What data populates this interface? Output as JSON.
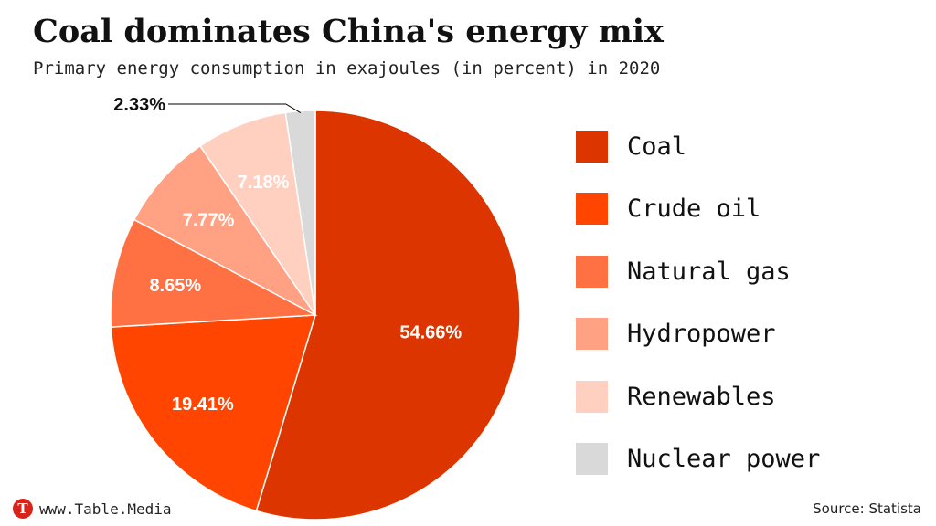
{
  "chart_data": {
    "type": "pie",
    "title": "Coal dominates China's energy mix",
    "subtitle": "Primary energy consumption in exajoules (in percent) in 2020",
    "categories": [
      "Coal",
      "Crude oil",
      "Natural gas",
      "Hydropower",
      "Renewables",
      "Nuclear power"
    ],
    "values": [
      54.66,
      19.41,
      8.65,
      7.77,
      7.18,
      2.33
    ],
    "data_labels": [
      "54.66%",
      "19.41%",
      "8.65%",
      "7.77%",
      "7.18%",
      "2.33%"
    ],
    "colors": [
      "#dd3500",
      "#ff4500",
      "#ff7043",
      "#ffa182",
      "#ffcfc0",
      "#d9d9d9"
    ],
    "legend_position": "right",
    "start_angle_deg": 0,
    "direction": "clockwise"
  },
  "footer": {
    "logo_letter": "T",
    "site": "www.Table.Media",
    "source": "Source: Statista"
  }
}
